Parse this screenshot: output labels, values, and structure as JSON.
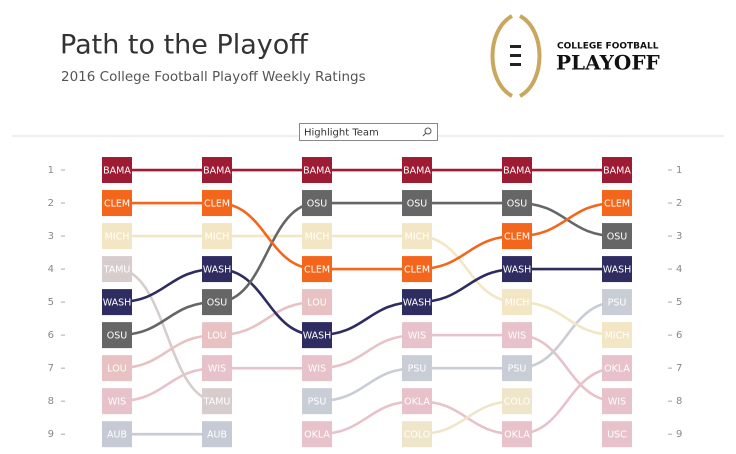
{
  "header": {
    "logo_line1": "COLLEGE FOOTBALL",
    "logo_line2": "PLAYOFF",
    "search_label": "Highlight Team"
  },
  "chart_data": {
    "type": "bump",
    "title": "Path to the Playoff",
    "subtitle": "2016 College Football Playoff Weekly Ratings",
    "categories": [
      null,
      null,
      null,
      null,
      null,
      null
    ],
    "ylim": [
      0,
      9.6
    ],
    "yticks": [
      1,
      2,
      3,
      4,
      5,
      6,
      7,
      8,
      9
    ],
    "series": [
      {
        "name": "TAMU",
        "color": "#d8cdcd",
        "values": [
          4,
          8,
          null,
          null,
          null,
          null
        ]
      },
      {
        "name": "LOU",
        "color": "#e8c2c2",
        "values": [
          7,
          6,
          5,
          null,
          null,
          null
        ]
      },
      {
        "name": "WIS",
        "color": "#e8c2ca",
        "values": [
          8,
          7,
          7,
          6,
          6,
          8
        ]
      },
      {
        "name": "AUB",
        "color": "#c6cad4",
        "values": [
          9,
          9,
          null,
          null,
          null,
          null
        ]
      },
      {
        "name": "PSU",
        "color": "#c9cdd6",
        "values": [
          null,
          null,
          8,
          7,
          7,
          5
        ]
      },
      {
        "name": "OKLA",
        "color": "#e8c2ca",
        "values": [
          null,
          null,
          9,
          8,
          9,
          7
        ]
      },
      {
        "name": "COLO",
        "color": "#efe5c8",
        "values": [
          null,
          null,
          null,
          9,
          8,
          null
        ]
      },
      {
        "name": "USC",
        "color": "#e8c2ca",
        "values": [
          null,
          null,
          null,
          null,
          null,
          9
        ]
      },
      {
        "name": "MICH",
        "color": "#f3e6c4",
        "values": [
          3,
          3,
          3,
          3,
          5,
          6
        ]
      },
      {
        "name": "WASH",
        "color": "#2f2c62",
        "values": [
          5,
          4,
          6,
          5,
          4,
          4
        ]
      },
      {
        "name": "OSU",
        "color": "#666666",
        "values": [
          6,
          5,
          2,
          2,
          2,
          3
        ]
      },
      {
        "name": "CLEM",
        "color": "#f4661b",
        "values": [
          2,
          2,
          4,
          4,
          3,
          2
        ]
      },
      {
        "name": "BAMA",
        "color": "#9e1b34",
        "values": [
          1,
          1,
          1,
          1,
          1,
          1
        ]
      }
    ]
  }
}
